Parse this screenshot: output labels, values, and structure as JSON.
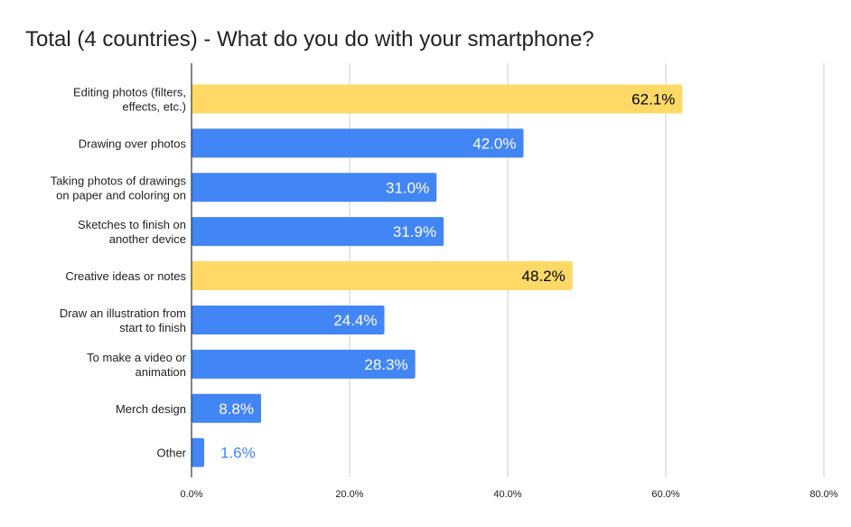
{
  "chart_data": {
    "type": "bar",
    "orientation": "horizontal",
    "title": "Total (4 countries) - What do you do with your smartphone?",
    "xlabel": "",
    "ylabel": "",
    "xlim": [
      0,
      80
    ],
    "x_ticks": [
      0,
      20,
      40,
      60,
      80
    ],
    "x_tick_labels": [
      "0.0%",
      "20.0%",
      "40.0%",
      "60.0%",
      "80.0%"
    ],
    "grid": "vertical",
    "legend": "none",
    "categories": [
      [
        "Editing photos (filters,",
        "effects, etc.)"
      ],
      [
        "Drawing over photos"
      ],
      [
        "Taking photos of drawings",
        "on paper and coloring on"
      ],
      [
        "Sketches to finish on",
        "another device"
      ],
      [
        "Creative ideas or notes"
      ],
      [
        "Draw an illustration from",
        "start to finish"
      ],
      [
        "To make a video or",
        "animation"
      ],
      [
        "Merch design"
      ],
      [
        "Other"
      ]
    ],
    "values": [
      62.1,
      42.0,
      31.0,
      31.9,
      48.2,
      24.4,
      28.3,
      8.8,
      1.6
    ],
    "data_labels": [
      "62.1%",
      "42.0%",
      "31.0%",
      "31.9%",
      "48.2%",
      "24.4%",
      "28.3%",
      "8.8%",
      "1.6%"
    ],
    "highlighted": [
      true,
      false,
      false,
      false,
      true,
      false,
      false,
      false,
      false
    ],
    "colors": {
      "bar": "#4285f4",
      "highlight": "#ffd966",
      "grid": "#cccccc",
      "axis": "#333333",
      "label_on_bar": "#ffffff",
      "label_on_highlight": "#000000",
      "label_outside": "#4285f4"
    }
  }
}
